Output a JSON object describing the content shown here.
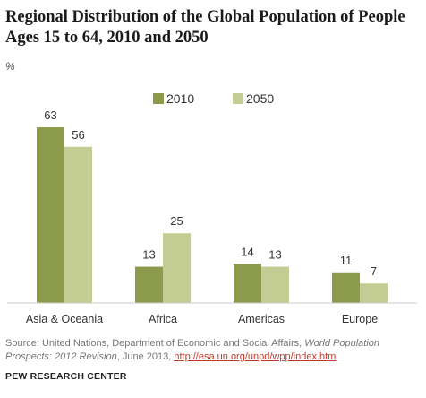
{
  "title": "Regional Distribution of the Global Population of People Ages 15 to 64, 2010 and 2050",
  "unit_label": "%",
  "chart_data": {
    "type": "bar",
    "title": "Regional Distribution of the Global Population of People Ages 15 to 64, 2010 and 2050",
    "xlabel": "",
    "ylabel": "%",
    "ylim": [
      0,
      70
    ],
    "grid": false,
    "legend_position": "top-center",
    "categories": [
      "Asia & Oceania",
      "Africa",
      "Americas",
      "Europe"
    ],
    "series": [
      {
        "name": "2010",
        "color": "#8c9a4c",
        "values": [
          63,
          13,
          14,
          11
        ]
      },
      {
        "name": "2050",
        "color": "#c3cc92",
        "values": [
          56,
          25,
          13,
          7
        ]
      }
    ]
  },
  "source": {
    "prefix": "Source: United Nations, Department of Economic and Social Affairs, ",
    "publication": "World Population Prospects: 2012 Revision",
    "middle": ", June 2013, ",
    "link": "http://esa.un.org/unpd/wpp/index.htm"
  },
  "footer": "PEW RESEARCH CENTER"
}
